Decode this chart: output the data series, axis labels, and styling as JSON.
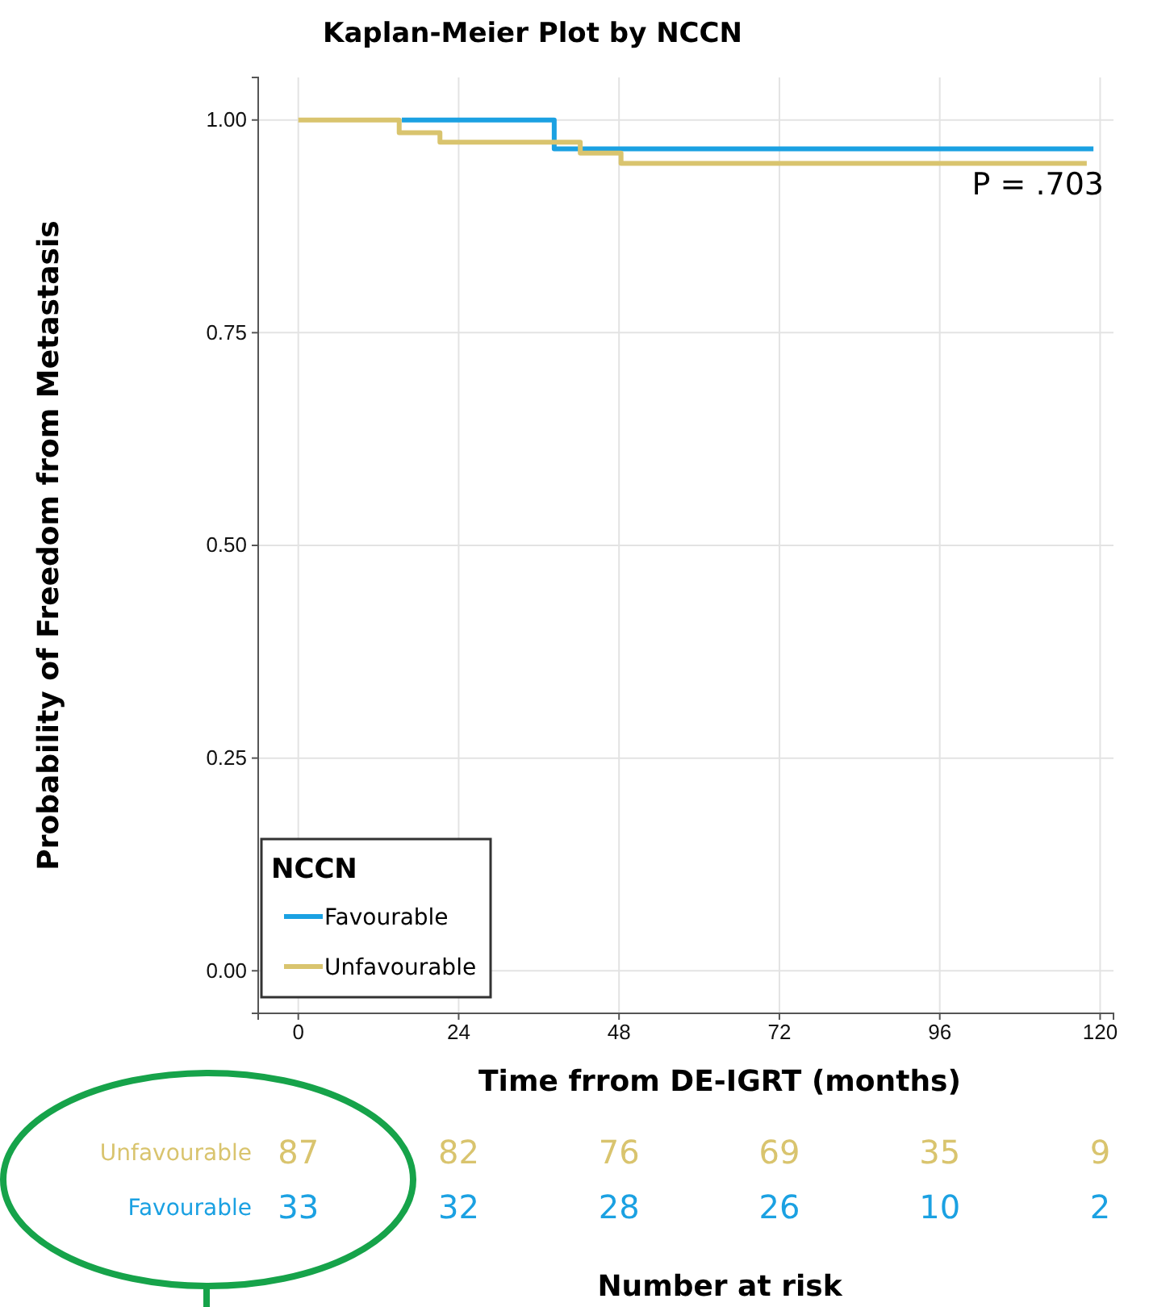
{
  "chart_data": {
    "type": "step",
    "title": "Kaplan-Meier Plot by NCCN",
    "xlabel": "Time frrom DE-IGRT (months)",
    "ylabel": "Probability of Freedom from Metastasis",
    "legend_title": "NCCN",
    "series": [
      {
        "name": "Favourable",
        "color": "#1ba1e2",
        "x": [
          15.5,
          38.3,
          119
        ],
        "values": [
          1,
          0.966,
          0.966
        ]
      },
      {
        "name": "Unfavourable",
        "color": "#d9c46e",
        "x": [
          0,
          15.1,
          21.2,
          42.2,
          48.3,
          118
        ],
        "values": [
          1,
          0.985,
          0.974,
          0.961,
          0.949,
          0.949
        ]
      }
    ],
    "xlim": [
      -6,
      122
    ],
    "ylim": [
      -0.05,
      1.05
    ],
    "xticks": [
      0,
      24,
      48,
      72,
      96,
      120
    ],
    "yticks": [
      {
        "value": 0,
        "label": "0.00"
      },
      {
        "value": 0.25,
        "label": "0.25"
      },
      {
        "value": 0.5,
        "label": "0.50"
      },
      {
        "value": 0.75,
        "label": "0.75"
      },
      {
        "value": 1,
        "label": "1.00"
      }
    ],
    "grid": true,
    "legend": "bottom left",
    "annotations": [
      "P = .703",
      "Number at risk",
      "Unfavourable",
      "Favourable",
      "87",
      "82",
      "76",
      "69",
      "35",
      "9",
      "33",
      "32",
      "28",
      "26",
      "10",
      "2"
    ]
  }
}
